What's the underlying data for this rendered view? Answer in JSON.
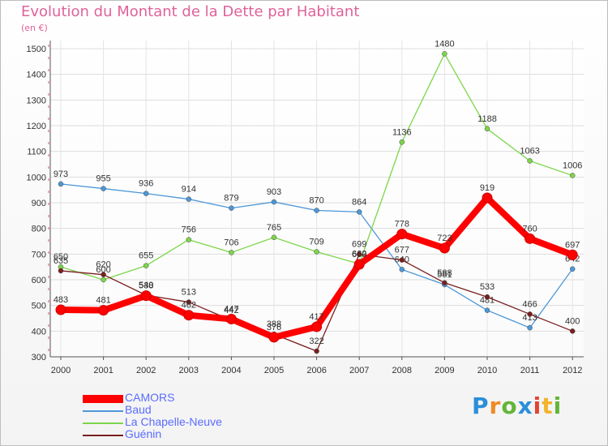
{
  "header": {
    "title": "Evolution du Montant de la Dette par Habitant",
    "subtitle": "(en €)"
  },
  "brand": {
    "name": "Proxiti",
    "colors": [
      "#2b8fd9",
      "#f08a24",
      "#63b537",
      "#2b8fd9",
      "#e2452f",
      "#f2b42c",
      "#63b537"
    ]
  },
  "chart_data": {
    "type": "line",
    "x": [
      2000,
      2001,
      2002,
      2003,
      2004,
      2005,
      2006,
      2007,
      2008,
      2009,
      2010,
      2011,
      2012
    ],
    "ylim": [
      300,
      1500
    ],
    "yticks": [
      300,
      400,
      500,
      600,
      700,
      800,
      900,
      1000,
      1100,
      1200,
      1300,
      1400,
      1500
    ],
    "grid": true,
    "legend": "bottom-left",
    "series": [
      {
        "name": "CAMORS",
        "color": "#ff0000",
        "values": [
          483,
          481,
          538,
          462,
          447,
          376,
          417,
          660,
          778,
          723,
          919,
          760,
          697
        ]
      },
      {
        "name": "Baud",
        "color": "#4d97d8",
        "values": [
          973,
          955,
          936,
          914,
          879,
          903,
          870,
          864,
          640,
          581,
          481,
          413,
          642
        ]
      },
      {
        "name": "La Chapelle-Neuve",
        "color": "#7cd64a",
        "values": [
          650,
          600,
          655,
          756,
          706,
          765,
          709,
          662,
          1136,
          1480,
          1188,
          1063,
          1006
        ]
      },
      {
        "name": "Guénin",
        "color": "#7a1f1f",
        "values": [
          635,
          620,
          540,
          513,
          442,
          388,
          322,
          699,
          677,
          588,
          533,
          466,
          400
        ]
      }
    ]
  }
}
